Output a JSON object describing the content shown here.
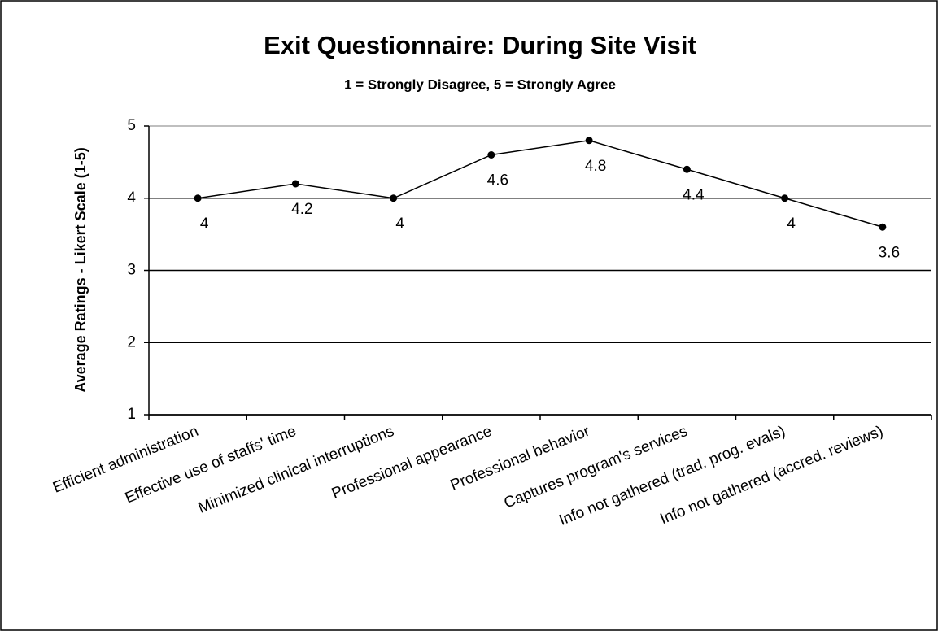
{
  "chart_data": {
    "type": "line",
    "title": "Exit Questionnaire: During Site Visit",
    "subtitle": "1 = Strongly Disagree, 5 = Strongly Agree",
    "y_label": "Average Ratings - Likert Scale (1-5)",
    "categories": [
      "Efficient administration",
      "Effective use of staffs' time",
      "Minimized clinical interruptions",
      "Professional appearance",
      "Professional behavior",
      "Captures program's services",
      "Info not gathered (trad. prog. evals)",
      "Info not gathered (accred. reviews)"
    ],
    "values": [
      4,
      4.2,
      4,
      4.6,
      4.8,
      4.4,
      4,
      3.6
    ],
    "color": "#000000",
    "ylim": [
      1,
      5
    ],
    "yticks": [
      1,
      2,
      3,
      4,
      5
    ],
    "grid": true
  }
}
